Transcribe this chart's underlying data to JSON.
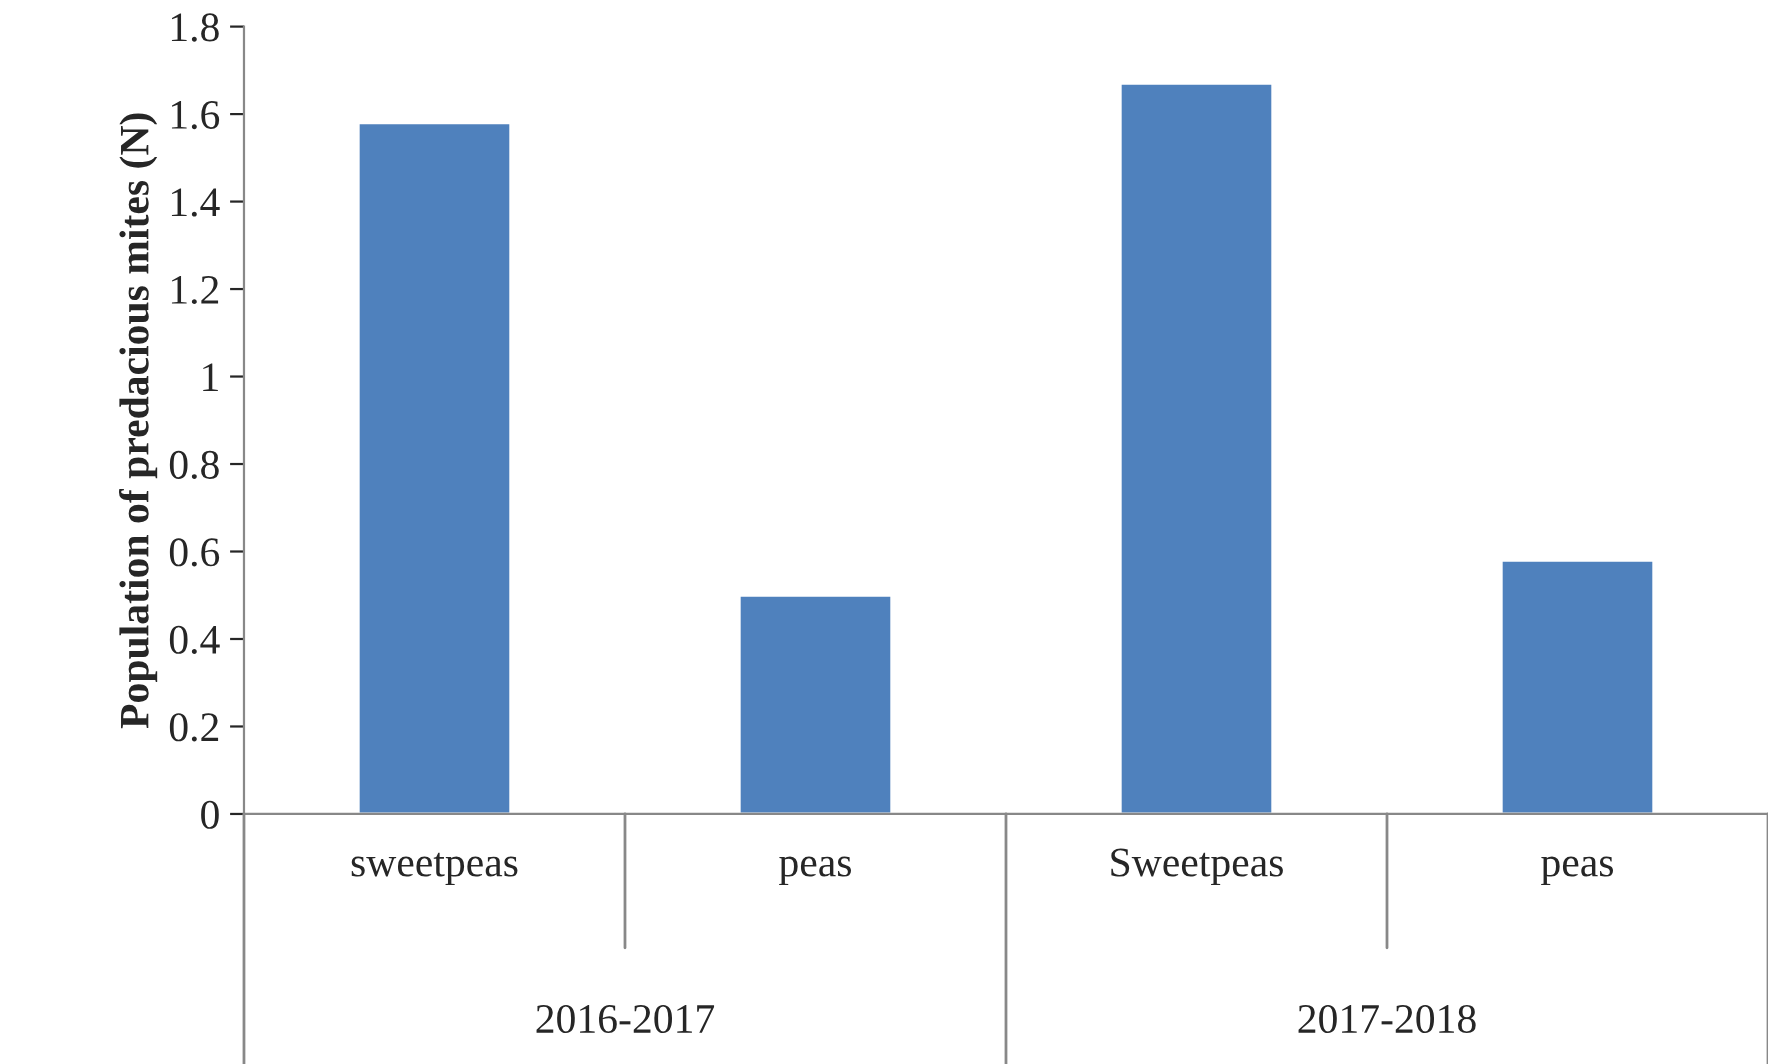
{
  "chart_data": {
    "type": "bar",
    "ylabel": "Population of predacious mites (N)",
    "categories": [
      "sweetpeas",
      "peas",
      "Sweetpeas",
      "peas"
    ],
    "values": [
      1.58,
      0.5,
      1.67,
      0.58
    ],
    "color": "#4f81bd",
    "ylim": [
      0,
      1.8
    ],
    "yticks": [
      0,
      0.2,
      0.4,
      0.6,
      0.8,
      1,
      1.2,
      1.4,
      1.6,
      1.8
    ],
    "annotations": [
      "2016-2017",
      "2017-2018"
    ],
    "grid": false
  }
}
